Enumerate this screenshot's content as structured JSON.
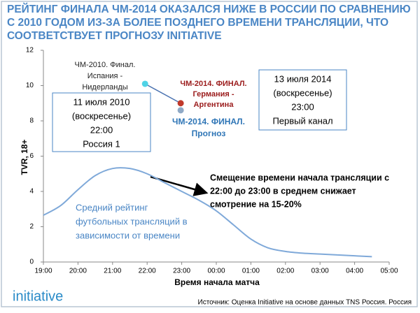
{
  "header": {
    "title_lines": [
      "РЕЙТИНГ ФИНАЛА ЧМ-2014 ОКАЗАЛСЯ НИЖЕ В РОССИИ ПО СРАВНЕНИЮ",
      "С 2010 ГОДОМ ИЗ-ЗА БОЛЕЕ ПОЗДНЕГО ВРЕМЕНИ ТРАНСЛЯЦИИ, ЧТО",
      "СООТВЕТСТВУЕТ ПРОГНОЗУ INITIATIVE"
    ]
  },
  "chart_data": {
    "type": "line",
    "xlabel": "Время начала матча",
    "ylabel": "TVR, 18+",
    "xlim": [
      19,
      29
    ],
    "ylim": [
      0,
      12
    ],
    "xticks": [
      {
        "value": 19,
        "label": "19:00"
      },
      {
        "value": 20,
        "label": "20:00"
      },
      {
        "value": 21,
        "label": "21:00"
      },
      {
        "value": 22,
        "label": "22:00"
      },
      {
        "value": 23,
        "label": "23:00"
      },
      {
        "value": 24,
        "label": "00:00"
      },
      {
        "value": 25,
        "label": "01:00"
      },
      {
        "value": 26,
        "label": "02:00"
      },
      {
        "value": 27,
        "label": "03:00"
      },
      {
        "value": 28,
        "label": "04:00"
      },
      {
        "value": 29,
        "label": "05:00"
      }
    ],
    "yticks": [
      0,
      2,
      4,
      6,
      8,
      10,
      12
    ],
    "x": [
      19,
      19.5,
      20,
      20.5,
      21,
      21.5,
      22,
      22.5,
      23,
      23.5,
      24,
      24.5,
      25,
      25.5,
      26,
      26.5,
      27,
      27.5,
      28,
      28.5
    ],
    "series": [
      {
        "color": "#7fa9d9",
        "label_lines": [
          "Средний рейтинг",
          "футбольных трансляций в",
          "зависимости от времени"
        ],
        "values": [
          2.65,
          3.2,
          4.1,
          4.9,
          5.3,
          5.3,
          5.0,
          4.5,
          4.0,
          3.5,
          2.9,
          2.1,
          1.3,
          0.8,
          0.6,
          0.5,
          0.45,
          0.4,
          0.35,
          0.3
        ]
      }
    ],
    "points": [
      {
        "x": 21.94,
        "y": 10.1,
        "color": "#4fd3e6",
        "label_color": "#222222",
        "label_lines": [
          "ЧМ-2010. Финал.",
          "Испания -",
          "Нидерланды"
        ]
      },
      {
        "x": 22.97,
        "y": 9.0,
        "color": "#c0392b",
        "label_color": "#9b1c1c",
        "label_lines": [
          "ЧМ-2014. ФИНАЛ.",
          "Германия -",
          "Аргентина"
        ]
      },
      {
        "x": 22.97,
        "y": 8.6,
        "color": "#8fa9c6",
        "label_color": "#2e75b6",
        "label_lines": [
          "ЧМ-2014. ФИНАЛ.",
          "Прогноз"
        ]
      }
    ],
    "boxes": [
      {
        "lines": [
          "11 июля 2010",
          "(воскресенье)",
          "22:00",
          "Россия 1"
        ]
      },
      {
        "lines": [
          "13 июля 2014",
          "(воскресенье)",
          "23:00",
          "Первый канал"
        ]
      }
    ],
    "note_lines": [
      "Смещение времени начала трансляции с",
      "22:00 до 23:00 в среднем снижает",
      "смотрение на 15-20%"
    ]
  },
  "footer": {
    "logo": "initiative",
    "source": "Источник: Оценка Initiative на основе данных TNS Россия. Россия"
  }
}
